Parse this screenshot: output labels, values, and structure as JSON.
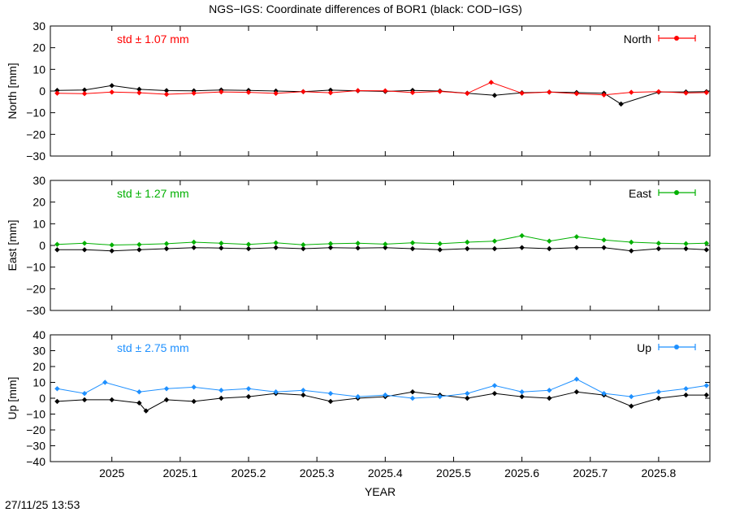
{
  "title": "NGS−IGS: Coordinate differences of BOR1 (black: COD−IGS)",
  "timestamp": "27/11/25 13:53",
  "colors": {
    "north": "#ff0000",
    "east": "#00b000",
    "up": "#1e90ff",
    "reference": "#000000"
  },
  "chart_data": {
    "type": "scatter",
    "title": "NGS−IGS: Coordinate differences of BOR1 (black: COD−IGS)",
    "xlabel": "YEAR",
    "xlim": [
      2024.91,
      2025.875
    ],
    "xticks": [
      "2025",
      "2025.1",
      "2025.2",
      "2025.3",
      "2025.4",
      "2025.5",
      "2025.6",
      "2025.7",
      "2025.8"
    ],
    "grid": false,
    "legend_position": "top-right",
    "panels": [
      {
        "key": "north",
        "ylabel": "North [mm]",
        "ylim": [
          -30,
          30
        ],
        "yticks": [
          "30",
          "20",
          "10",
          "0",
          "−10",
          "−20",
          "−30"
        ],
        "std_label": "std ± 1.07 mm",
        "legend": "North",
        "series": [
          {
            "name": "North",
            "x": [
              2024.92,
              2024.96,
              2025.0,
              2025.04,
              2025.08,
              2025.12,
              2025.16,
              2025.2,
              2025.24,
              2025.28,
              2025.32,
              2025.36,
              2025.4,
              2025.44,
              2025.48,
              2025.52,
              2025.555,
              2025.6,
              2025.64,
              2025.68,
              2025.72,
              2025.76,
              2025.8,
              2025.84,
              2025.87
            ],
            "y": [
              -1.0,
              -1.2,
              -0.5,
              -0.8,
              -1.5,
              -1.0,
              -0.4,
              -0.6,
              -1.1,
              -0.3,
              -0.8,
              0.2,
              0.1,
              -0.7,
              -0.2,
              -1.1,
              4.0,
              -1.0,
              -0.5,
              -1.2,
              -1.8,
              -0.6,
              -0.3,
              -0.9,
              -0.7
            ]
          },
          {
            "name": "COD−IGS",
            "x": [
              2024.92,
              2024.96,
              2025.0,
              2025.04,
              2025.08,
              2025.12,
              2025.16,
              2025.2,
              2025.24,
              2025.28,
              2025.32,
              2025.36,
              2025.4,
              2025.44,
              2025.48,
              2025.52,
              2025.56,
              2025.6,
              2025.64,
              2025.68,
              2025.72,
              2025.745,
              2025.8,
              2025.84,
              2025.87
            ],
            "y": [
              0.3,
              0.5,
              2.5,
              0.8,
              0.2,
              0.1,
              0.5,
              0.3,
              0.0,
              -0.3,
              0.4,
              0.1,
              -0.2,
              0.3,
              0.0,
              -1.0,
              -2.0,
              -0.8,
              -0.5,
              -0.7,
              -1.0,
              -6.0,
              -0.5,
              -0.4,
              -0.3
            ]
          }
        ]
      },
      {
        "key": "east",
        "ylabel": "East [mm]",
        "ylim": [
          -30,
          30
        ],
        "yticks": [
          "30",
          "20",
          "10",
          "0",
          "−10",
          "−20",
          "−30"
        ],
        "std_label": "std ± 1.27 mm",
        "legend": "East",
        "series": [
          {
            "name": "East",
            "x": [
              2024.92,
              2024.96,
              2025.0,
              2025.04,
              2025.08,
              2025.12,
              2025.16,
              2025.2,
              2025.24,
              2025.28,
              2025.32,
              2025.36,
              2025.4,
              2025.44,
              2025.48,
              2025.52,
              2025.56,
              2025.6,
              2025.64,
              2025.68,
              2025.72,
              2025.76,
              2025.8,
              2025.84,
              2025.87
            ],
            "y": [
              0.5,
              1.0,
              0.2,
              0.4,
              0.8,
              1.5,
              1.0,
              0.5,
              1.2,
              0.3,
              0.8,
              1.0,
              0.6,
              1.2,
              0.8,
              1.5,
              2.0,
              4.5,
              2.0,
              4.0,
              2.5,
              1.5,
              1.0,
              0.8,
              1.0
            ]
          },
          {
            "name": "COD−IGS",
            "x": [
              2024.92,
              2024.96,
              2025.0,
              2025.04,
              2025.08,
              2025.12,
              2025.16,
              2025.2,
              2025.24,
              2025.28,
              2025.32,
              2025.36,
              2025.4,
              2025.44,
              2025.48,
              2025.52,
              2025.56,
              2025.6,
              2025.64,
              2025.68,
              2025.72,
              2025.76,
              2025.8,
              2025.84,
              2025.87
            ],
            "y": [
              -2.0,
              -2.0,
              -2.5,
              -2.0,
              -1.5,
              -1.0,
              -1.2,
              -1.5,
              -1.0,
              -1.5,
              -1.0,
              -1.2,
              -1.0,
              -1.5,
              -2.0,
              -1.5,
              -1.5,
              -1.0,
              -1.5,
              -1.0,
              -1.0,
              -2.5,
              -1.5,
              -1.5,
              -2.0
            ]
          }
        ]
      },
      {
        "key": "up",
        "ylabel": "Up [mm]",
        "ylim": [
          -40,
          40
        ],
        "yticks": [
          "40",
          "30",
          "20",
          "10",
          "0",
          "−10",
          "−20",
          "−30",
          "−40"
        ],
        "std_label": "std ± 2.75 mm",
        "legend": "Up",
        "series": [
          {
            "name": "Up",
            "x": [
              2024.92,
              2024.96,
              2024.99,
              2025.04,
              2025.08,
              2025.12,
              2025.16,
              2025.2,
              2025.24,
              2025.28,
              2025.32,
              2025.36,
              2025.4,
              2025.44,
              2025.48,
              2025.52,
              2025.56,
              2025.6,
              2025.64,
              2025.68,
              2025.72,
              2025.76,
              2025.8,
              2025.84,
              2025.87
            ],
            "y": [
              6.0,
              3.0,
              10.0,
              4.0,
              6.0,
              7.0,
              5.0,
              6.0,
              4.0,
              5.0,
              3.0,
              1.0,
              2.0,
              0.0,
              1.0,
              3.0,
              8.0,
              4.0,
              5.0,
              12.0,
              3.0,
              1.0,
              4.0,
              6.0,
              8.0
            ]
          },
          {
            "name": "COD−IGS",
            "x": [
              2024.92,
              2024.96,
              2025.0,
              2025.04,
              2025.05,
              2025.08,
              2025.12,
              2025.16,
              2025.2,
              2025.24,
              2025.28,
              2025.32,
              2025.36,
              2025.4,
              2025.44,
              2025.48,
              2025.52,
              2025.56,
              2025.6,
              2025.64,
              2025.68,
              2025.72,
              2025.76,
              2025.8,
              2025.84,
              2025.87
            ],
            "y": [
              -2.0,
              -1.0,
              -1.0,
              -3.0,
              -8.0,
              -1.0,
              -2.0,
              0.0,
              1.0,
              3.0,
              2.0,
              -2.0,
              0.0,
              1.0,
              4.0,
              2.0,
              0.0,
              3.0,
              1.0,
              0.0,
              4.0,
              2.0,
              -5.0,
              0.0,
              2.0,
              2.0
            ]
          }
        ]
      }
    ]
  }
}
